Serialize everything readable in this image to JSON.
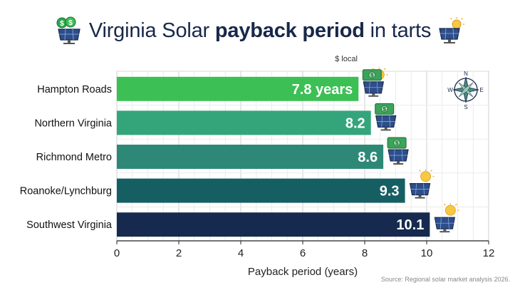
{
  "title": {
    "part1": "Virginia Solar ",
    "bold": "payback period",
    "part2": " in tarts"
  },
  "chart_data": {
    "type": "bar",
    "orientation": "horizontal",
    "categories": [
      "Hampton Roads",
      "Northern Virginia",
      "Richmond Metro",
      "Roanoke/Lynchburg",
      "Southwest Virginia"
    ],
    "values": [
      7.8,
      8.2,
      8.6,
      9.3,
      10.1
    ],
    "data_labels": [
      "7.8 years",
      "8.2",
      "8.6",
      "9.3",
      "10.1"
    ],
    "colors": [
      "#3cc055",
      "#34a57a",
      "#2e8878",
      "#155f63",
      "#152a4e"
    ],
    "xlabel": "Payback period (years)",
    "xlim": [
      0,
      12
    ],
    "xticks": [
      0,
      2,
      4,
      6,
      8,
      10,
      12
    ],
    "grid": true,
    "annotation": "$ local",
    "bar_icons": [
      "money-solar-sun",
      "money-solar",
      "money-solar",
      "solar-sun",
      "solar-sun"
    ]
  },
  "compass": {
    "n": "N",
    "s": "S",
    "e": "E",
    "w": "W"
  },
  "source": "Source: Regional solar market analysis 2026."
}
